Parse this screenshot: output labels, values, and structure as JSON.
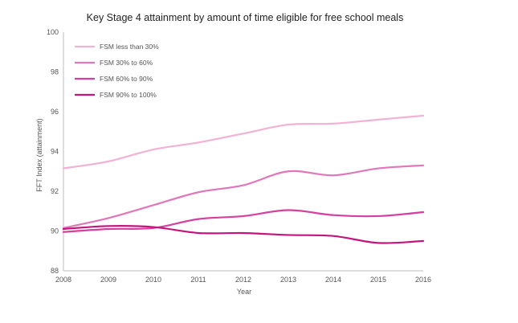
{
  "chart_data": {
    "type": "line",
    "title": "Key Stage 4 attainment by amount of time eligible for free school meals",
    "xlabel": "Year",
    "ylabel": "FFT Index (attainment)",
    "x": [
      2008,
      2009,
      2010,
      2011,
      2012,
      2013,
      2014,
      2015,
      2016
    ],
    "ylim": [
      88,
      100
    ],
    "yticks": [
      88,
      90,
      92,
      94,
      96,
      98,
      100
    ],
    "grid": false,
    "legend_position": "top-left",
    "series": [
      {
        "name": "FSM less than 30%",
        "color": "#f1b2d3",
        "values": [
          93.15,
          93.5,
          94.1,
          94.45,
          94.9,
          95.35,
          95.4,
          95.6,
          95.8
        ]
      },
      {
        "name": "FSM 30% to 60%",
        "color": "#e176b8",
        "values": [
          90.15,
          90.65,
          91.3,
          91.95,
          92.3,
          93.0,
          92.8,
          93.15,
          93.3
        ]
      },
      {
        "name": "FSM 60% to 90%",
        "color": "#d63f9e",
        "values": [
          89.95,
          90.1,
          90.15,
          90.6,
          90.75,
          91.05,
          90.8,
          90.75,
          90.95
        ]
      },
      {
        "name": "FSM 90% to 100%",
        "color": "#c4147e",
        "values": [
          90.1,
          90.25,
          90.2,
          89.9,
          89.9,
          89.8,
          89.75,
          89.4,
          89.5
        ]
      }
    ]
  }
}
